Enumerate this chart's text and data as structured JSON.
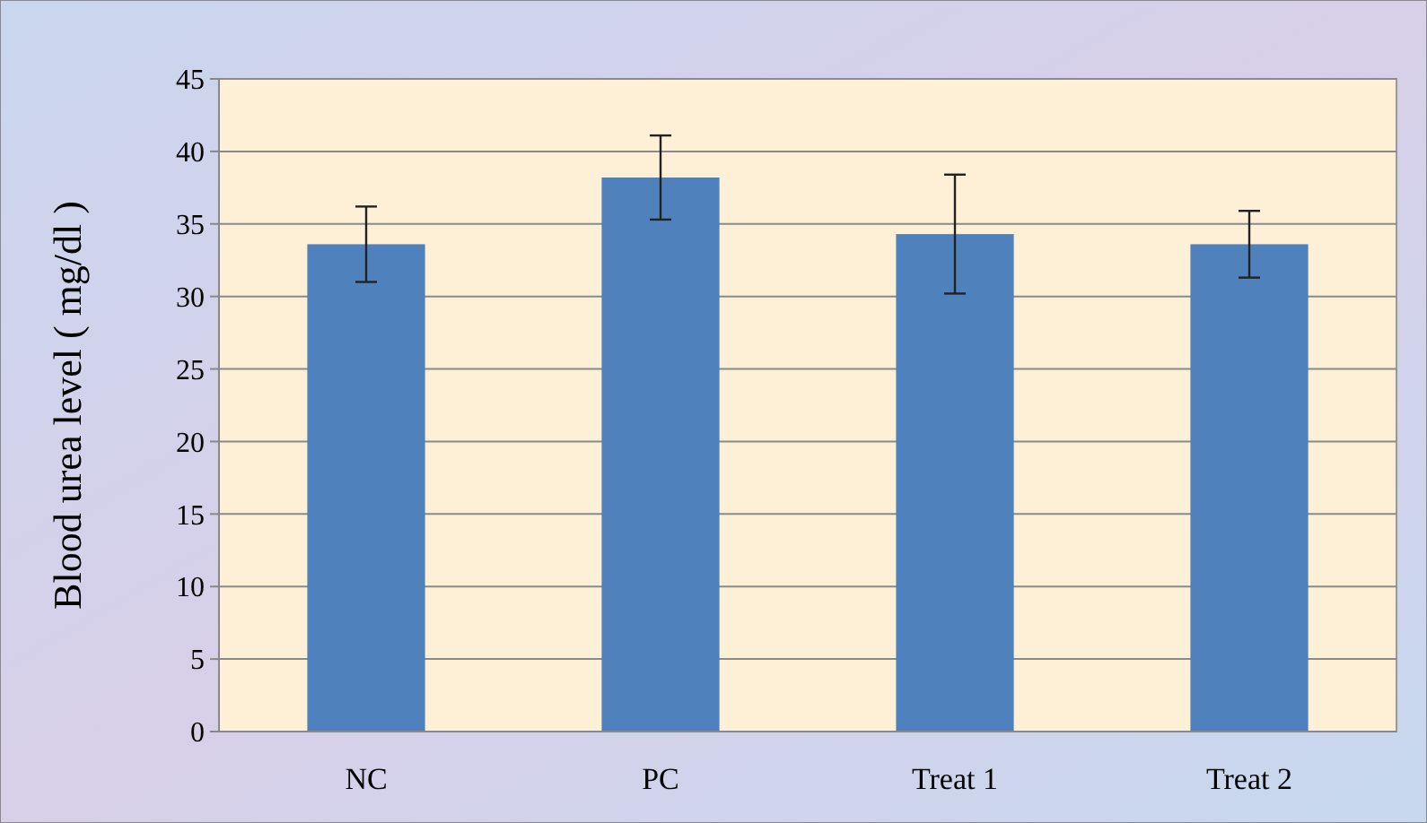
{
  "chart_data": {
    "type": "bar",
    "ylabel": "Blood urea level ( mg/dl )",
    "categories": [
      "NC",
      "PC",
      "Treat 1",
      "Treat 2"
    ],
    "values": [
      33.6,
      38.2,
      34.3,
      33.6
    ],
    "errors": [
      2.6,
      2.9,
      4.1,
      2.3
    ],
    "color": "#4f81bd",
    "ylim": [
      0,
      45
    ],
    "yticks": [
      0,
      5,
      10,
      15,
      20,
      25,
      30,
      35,
      40,
      45
    ],
    "grid": "y"
  }
}
